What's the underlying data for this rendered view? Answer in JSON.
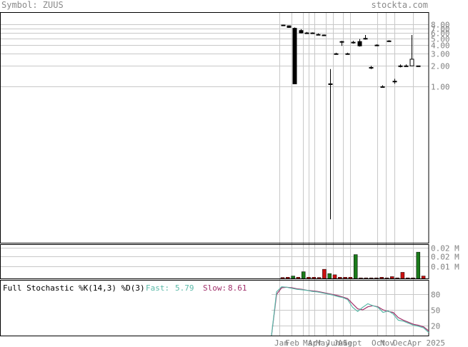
{
  "header": {
    "symbol_label": "Symbol: ZUUS",
    "site": "stockta.com"
  },
  "stochastic": {
    "title": "Full Stochastic %K(14,3) %D(3)",
    "fast_label": "Fast:",
    "fast_value": "5.79",
    "slow_label": "Slow:",
    "slow_value": "8.61",
    "fast_color": "#5ab9a8",
    "slow_color": "#a0306a"
  },
  "chart_data": [
    {
      "type": "candlestick",
      "scale": "log",
      "x_tick_labels": [
        "Jan",
        "Feb",
        "Mar",
        "Apr",
        "May",
        "Jun",
        "Jul",
        "Aug",
        "Sept",
        "Oct",
        "Nov",
        "Dec",
        "Apr 2025"
      ],
      "y_tick_labels": [
        "8.00",
        "7.00",
        "6.00",
        "5.00",
        "4.00",
        "3.00",
        "2.00",
        "1.00"
      ],
      "y_ticks": [
        8,
        7,
        6,
        5,
        4,
        3,
        2,
        1
      ],
      "ylim": [
        0.0055,
        12
      ],
      "candles": [
        {
          "o": 7.8,
          "h": 7.9,
          "l": 7.6,
          "c": 7.7
        },
        {
          "o": 7.6,
          "h": 7.7,
          "l": 7.1,
          "c": 7.2
        },
        {
          "o": 7.0,
          "h": 7.2,
          "l": 1.1,
          "c": 1.1
        },
        {
          "o": 6.5,
          "h": 6.8,
          "l": 5.9,
          "c": 6.0
        },
        {
          "o": 6.0,
          "h": 6.2,
          "l": 5.8,
          "c": 6.0
        },
        {
          "o": 6.0,
          "h": 6.1,
          "l": 5.9,
          "c": 6.0
        },
        {
          "o": 5.7,
          "h": 5.9,
          "l": 5.6,
          "c": 5.7
        },
        {
          "o": 5.6,
          "h": 5.7,
          "l": 5.4,
          "c": 5.5
        },
        {
          "o": 1.1,
          "h": 1.8,
          "l": 0.012,
          "c": 1.1
        },
        {
          "o": 3.0,
          "h": 3.1,
          "l": 2.9,
          "c": 3.0
        },
        {
          "o": 4.5,
          "h": 4.6,
          "l": 3.9,
          "c": 4.5
        },
        {
          "o": 3.0,
          "h": 3.1,
          "l": 2.9,
          "c": 3.0
        },
        {
          "o": 4.4,
          "h": 4.6,
          "l": 4.2,
          "c": 4.4
        },
        {
          "o": 4.5,
          "h": 4.9,
          "l": 3.8,
          "c": 3.9
        },
        {
          "o": 5.0,
          "h": 5.6,
          "l": 4.8,
          "c": 5.0
        },
        {
          "o": 1.9,
          "h": 2.0,
          "l": 1.8,
          "c": 1.9
        },
        {
          "o": 4.0,
          "h": 4.1,
          "l": 3.9,
          "c": 4.0
        },
        {
          "o": 1.0,
          "h": 1.05,
          "l": 0.98,
          "c": 1.0
        },
        {
          "o": 4.6,
          "h": 4.7,
          "l": 4.5,
          "c": 4.6
        },
        {
          "o": 1.2,
          "h": 1.3,
          "l": 1.1,
          "c": 1.2
        },
        {
          "o": 2.0,
          "h": 2.1,
          "l": 1.9,
          "c": 2.0
        },
        {
          "o": 2.0,
          "h": 2.1,
          "l": 2.0,
          "c": 2.0
        },
        {
          "o": 2.0,
          "h": 5.6,
          "l": 2.0,
          "c": 2.5
        },
        {
          "o": 2.0,
          "h": 2.0,
          "l": 2.0,
          "c": 2.0
        }
      ]
    },
    {
      "type": "bar",
      "name": "volume",
      "y_tick_labels": [
        "0.02 M",
        "0.02 M",
        "0.01 M"
      ],
      "y_ticks": [
        0.025,
        0.018,
        0.01
      ],
      "ylim": [
        0,
        0.028
      ],
      "values": [
        0.0008,
        0.001,
        0.002,
        0.001,
        0.0055,
        0.001,
        0.001,
        0.0008,
        0.0075,
        0.004,
        0.003,
        0.001,
        0.001,
        0.001,
        0.0195,
        0.0005,
        0.0005,
        0.0005,
        0.0005,
        0.001,
        0.0005,
        0.0015,
        0.0005,
        0.005,
        0.0005,
        0.0005,
        0.0215,
        0.002
      ],
      "up": [
        false,
        false,
        true,
        false,
        true,
        false,
        false,
        false,
        false,
        true,
        false,
        false,
        false,
        false,
        true,
        false,
        false,
        false,
        false,
        false,
        false,
        false,
        false,
        false,
        false,
        false,
        true,
        false
      ]
    },
    {
      "type": "line",
      "name": "stochastic",
      "y_tick_labels": [
        "80",
        "50",
        "20"
      ],
      "y_ticks": [
        80,
        50,
        20
      ],
      "ylim": [
        0,
        100
      ],
      "fast": [
        0,
        85,
        95,
        94,
        92,
        90,
        89,
        88,
        86,
        85,
        83,
        81,
        79,
        76,
        74,
        70,
        55,
        47,
        55,
        62,
        58,
        55,
        45,
        48,
        42,
        30,
        28,
        24,
        20,
        18,
        15,
        6
      ],
      "slow": [
        0,
        80,
        93,
        94,
        93,
        91,
        90,
        88,
        87,
        86,
        84,
        82,
        80,
        78,
        75,
        72,
        62,
        52,
        50,
        56,
        58,
        56,
        50,
        47,
        45,
        35,
        30,
        26,
        22,
        20,
        17,
        9
      ]
    }
  ]
}
